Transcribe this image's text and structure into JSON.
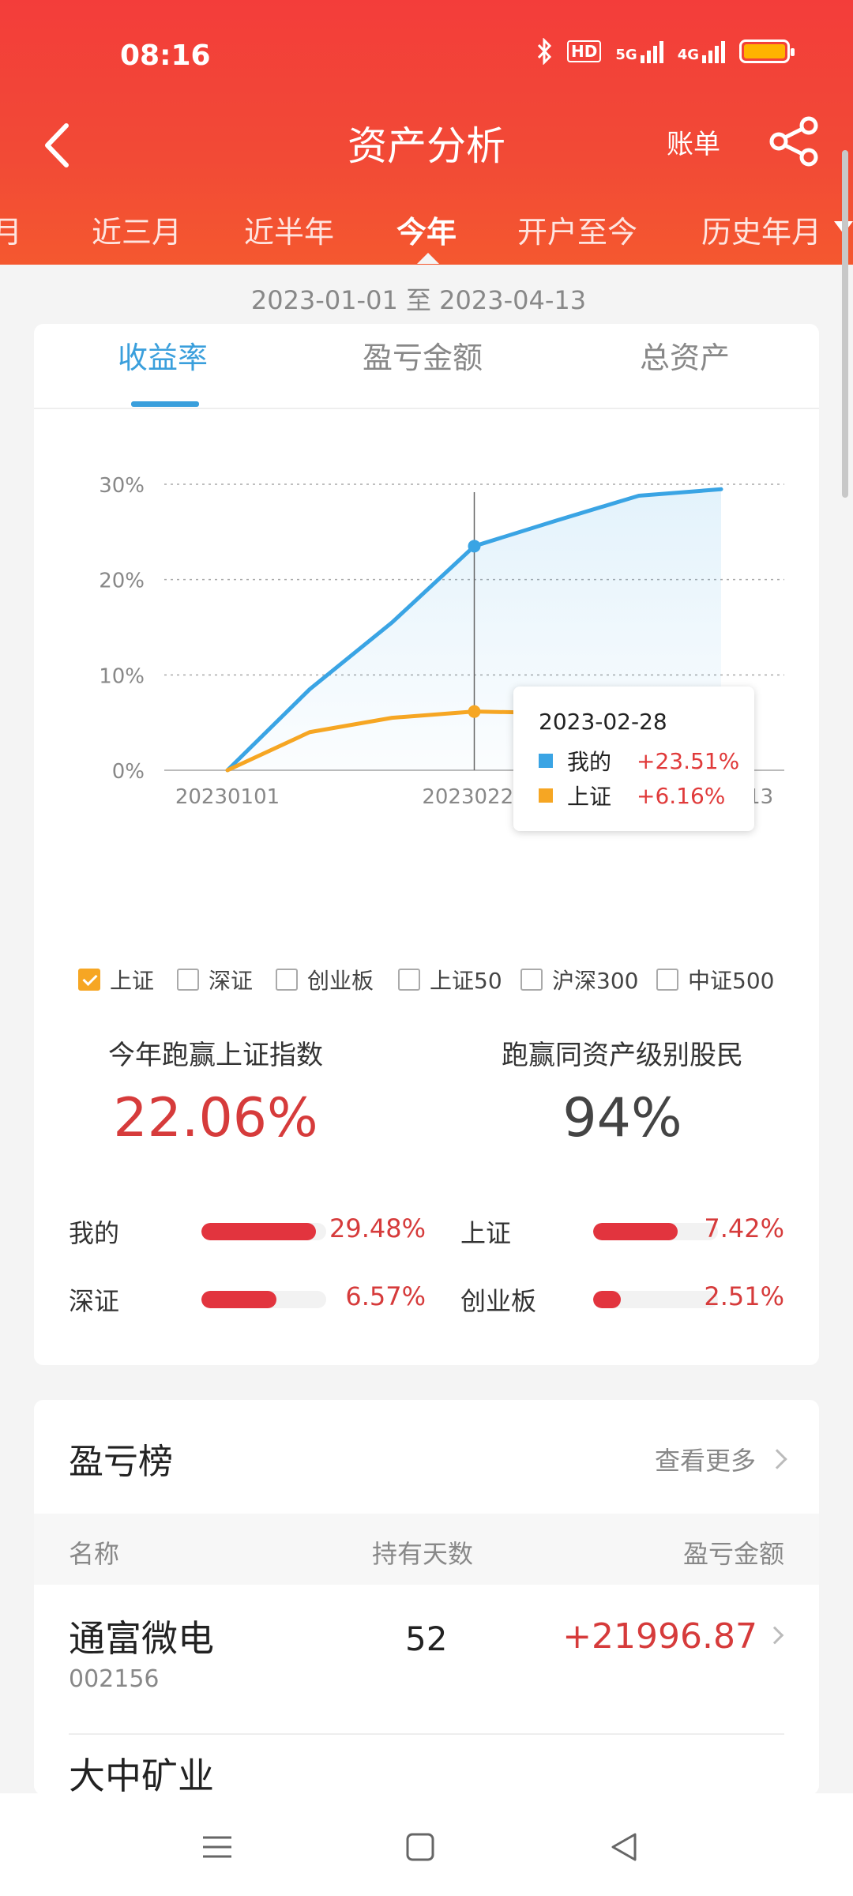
{
  "status": {
    "time": "08:16",
    "hd": "HD",
    "net1": "5G",
    "net2": "4G"
  },
  "nav": {
    "title": "资产分析",
    "bill": "账单"
  },
  "tabs": [
    "月",
    "近三月",
    "近半年",
    "今年",
    "开户至今",
    "历史年月"
  ],
  "active_tab": "今年",
  "date_range": "2023-01-01 至 2023-04-13",
  "subtabs": [
    "收益率",
    "盈亏金额",
    "总资产"
  ],
  "chart_data": {
    "type": "line",
    "x": [
      "20230101",
      "20230115",
      "20230201",
      "20230228",
      "20230315",
      "20230331",
      "20230413"
    ],
    "series": [
      {
        "name": "我的",
        "color": "#3aa4e4",
        "values": [
          0,
          8.5,
          15.5,
          23.51,
          26.2,
          28.8,
          29.48
        ]
      },
      {
        "name": "上证",
        "color": "#f6a623",
        "values": [
          0,
          4.0,
          5.5,
          6.16,
          6.0,
          5.9,
          7.42
        ]
      }
    ],
    "xticks": [
      "20230101",
      "20230228",
      "20230413"
    ],
    "yticks": [
      "0%",
      "10%",
      "20%",
      "30%"
    ],
    "ylim": [
      0,
      30
    ],
    "tooltip": {
      "date": "2023-02-28",
      "rows": [
        {
          "name": "我的",
          "value": "+23.51%"
        },
        {
          "name": "上证",
          "value": "+6.16%"
        }
      ]
    }
  },
  "legend": [
    {
      "label": "上证",
      "checked": true
    },
    {
      "label": "深证",
      "checked": false
    },
    {
      "label": "创业板",
      "checked": false
    },
    {
      "label": "上证50",
      "checked": false
    },
    {
      "label": "沪深300",
      "checked": false
    },
    {
      "label": "中证500",
      "checked": false
    }
  ],
  "stats": {
    "beat_index_label": "今年跑赢上证指数",
    "beat_index_value": "22.06%",
    "beat_peers_label": "跑赢同资产级别股民",
    "beat_peers_value": "94%"
  },
  "bars": [
    {
      "name": "我的",
      "value": "29.48%",
      "pct": 0.92
    },
    {
      "name": "上证",
      "value": "7.42%",
      "pct": 0.68
    },
    {
      "name": "深证",
      "value": "6.57%",
      "pct": 0.6
    },
    {
      "name": "创业板",
      "value": "2.51%",
      "pct": 0.22
    }
  ],
  "ranking": {
    "title": "盈亏榜",
    "more": "查看更多",
    "headers": [
      "名称",
      "持有天数",
      "盈亏金额"
    ],
    "rows": [
      {
        "name": "通富微电",
        "code": "002156",
        "days": "52",
        "amount": "+21996.87"
      },
      {
        "name": "大中矿业",
        "code": "",
        "days": "",
        "amount": ""
      }
    ]
  }
}
